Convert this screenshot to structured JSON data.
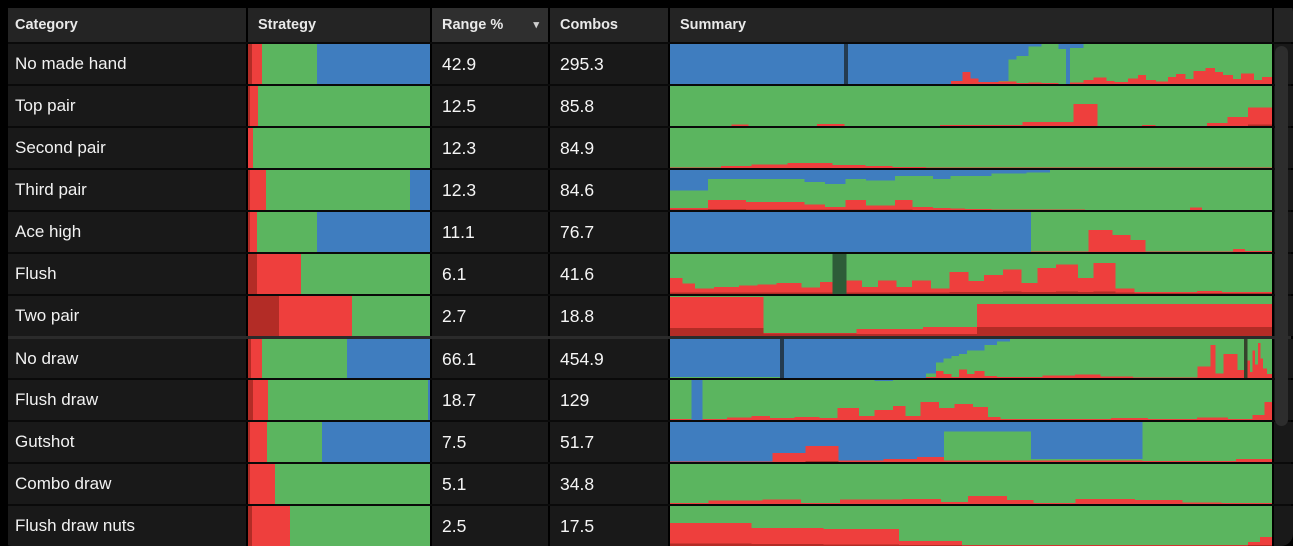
{
  "colors": {
    "red": "#ee3f3d",
    "dark_red": "#b32c26",
    "green": "#5bb55f",
    "blue": "#3f7dbf",
    "row_bg": "#191919",
    "header_bg": "#242424",
    "header_active_bg": "#2f2f2f",
    "separator": "#0a0a0a",
    "group_separator": "#2b2b2b",
    "frame": "#000000",
    "text": "#f2f2f2",
    "scrollbar_thumb": "#2d2d2d"
  },
  "header": {
    "category": "Category",
    "strategy": "Strategy",
    "range": "Range %",
    "combos": "Combos",
    "summary": "Summary",
    "sort_icon": "▾",
    "sorted_column": "range"
  },
  "rows": [
    {
      "category": "No made hand",
      "range": "42.9",
      "combos": "295.3",
      "strategy": {
        "dr": 0.02,
        "r": 0.055,
        "g": 0.305,
        "b": 0.62
      },
      "summary": [
        [
          0.262,
          0,
          0,
          0
        ],
        [
          0.006,
          "solid",
          "#243b50"
        ],
        [
          0.155,
          0,
          0,
          0
        ],
        [
          0.018,
          0,
          0.08,
          0
        ],
        [
          0.012,
          0,
          0.3,
          0
        ],
        [
          0.012,
          0,
          0.14,
          0
        ],
        [
          0.03,
          0,
          0.05,
          0
        ],
        [
          0.015,
          0,
          0.06,
          0.02
        ],
        [
          0.012,
          0,
          0.06,
          0.55
        ],
        [
          0.018,
          0,
          0.03,
          0.67
        ],
        [
          0.02,
          0,
          0.04,
          0.9
        ],
        [
          0.025,
          0,
          0.03,
          0.97
        ],
        [
          0.012,
          0,
          0,
          0.88
        ],
        [
          0.006,
          "solid",
          "#3f7dbf"
        ],
        [
          0.02,
          0,
          0.04,
          0.86
        ],
        [
          0.015,
          0,
          0.1,
          0.9
        ],
        [
          0.02,
          0,
          0.16,
          0.84
        ],
        [
          0.012,
          0,
          0.08,
          0.92
        ],
        [
          0.02,
          0,
          0.05,
          0.95
        ],
        [
          0.015,
          0,
          0.14,
          0.86
        ],
        [
          0.012,
          0,
          0.22,
          0.78
        ],
        [
          0.015,
          0,
          0.1,
          0.9
        ],
        [
          0.018,
          0,
          0.06,
          0.94
        ],
        [
          0.012,
          0,
          0.18,
          0.82
        ],
        [
          0.015,
          0,
          0.25,
          0.75
        ],
        [
          0.012,
          0,
          0.12,
          0.88
        ],
        [
          0.018,
          0,
          0.33,
          0.67
        ],
        [
          0.014,
          0,
          0.4,
          0.6
        ],
        [
          0.012,
          0,
          0.3,
          0.7
        ],
        [
          0.015,
          0,
          0.22,
          0.78
        ],
        [
          0.012,
          0,
          0.12,
          0.88
        ],
        [
          0.02,
          0,
          0.26,
          0.74
        ],
        [
          0.012,
          0,
          0.1,
          0.9
        ],
        [
          0.015,
          0,
          0.18,
          0.82
        ]
      ]
    },
    {
      "category": "Top pair",
      "range": "12.5",
      "combos": "85.8",
      "strategy": {
        "dr": 0.012,
        "r": 0.045,
        "g": 0.943,
        "b": 0
      },
      "summary": [
        [
          0.09,
          0,
          0.005,
          0.995
        ],
        [
          0.025,
          0,
          0.04,
          0.96
        ],
        [
          0.1,
          0,
          0.005,
          0.995
        ],
        [
          0.04,
          0,
          0.05,
          0.95
        ],
        [
          0.14,
          0,
          0,
          1
        ],
        [
          0.12,
          0,
          0.02,
          0.98
        ],
        [
          0.075,
          0,
          0.1,
          0.9
        ],
        [
          0.035,
          0,
          0.55,
          0.45
        ],
        [
          0.065,
          0,
          0.005,
          0.995
        ],
        [
          0.02,
          0,
          0.03,
          0.97
        ],
        [
          0.075,
          0,
          0,
          1
        ],
        [
          0.03,
          0,
          0.08,
          0.92
        ],
        [
          0.03,
          0,
          0.22,
          0.78
        ],
        [
          0.035,
          0.04,
          0.42,
          0.54
        ]
      ]
    },
    {
      "category": "Second pair",
      "range": "12.3",
      "combos": "84.9",
      "strategy": {
        "dr": 0,
        "r": 0.03,
        "g": 0.97,
        "b": 0
      },
      "summary": [
        [
          0.085,
          0,
          0.01,
          0.99
        ],
        [
          0.05,
          0,
          0.05,
          0.95
        ],
        [
          0.06,
          0,
          0.09,
          0.91
        ],
        [
          0.075,
          0,
          0.12,
          0.88
        ],
        [
          0.055,
          0,
          0.08,
          0.92
        ],
        [
          0.045,
          0,
          0.05,
          0.95
        ],
        [
          0.055,
          0,
          0.03,
          0.97
        ],
        [
          0.575,
          0,
          0.008,
          0.992
        ]
      ]
    },
    {
      "category": "Third pair",
      "range": "12.3",
      "combos": "84.6",
      "strategy": {
        "dr": 0.01,
        "r": 0.09,
        "g": 0.79,
        "b": 0.11
      },
      "summary": [
        [
          0.065,
          0.01,
          0.04,
          0.44
        ],
        [
          0.065,
          0.02,
          0.23,
          0.52
        ],
        [
          0.1,
          0.015,
          0.185,
          0.58
        ],
        [
          0.035,
          0.01,
          0.13,
          0.56
        ],
        [
          0.035,
          0.01,
          0.07,
          0.57
        ],
        [
          0.035,
          0.01,
          0.24,
          0.52
        ],
        [
          0.05,
          0.01,
          0.1,
          0.63
        ],
        [
          0.03,
          0.01,
          0.24,
          0.6
        ],
        [
          0.035,
          0.005,
          0.07,
          0.775
        ],
        [
          0.03,
          0.005,
          0.04,
          0.725
        ],
        [
          0.025,
          0.005,
          0.03,
          0.82
        ],
        [
          0.045,
          0,
          0.02,
          0.83
        ],
        [
          0.06,
          0,
          0.015,
          0.895
        ],
        [
          0.04,
          0,
          0.01,
          0.93
        ],
        [
          0.06,
          0,
          0.01,
          0.99
        ],
        [
          0.18,
          0,
          0.005,
          0.995
        ],
        [
          0.02,
          0,
          0.06,
          0.94
        ],
        [
          0.12,
          0,
          0.005,
          0.995
        ]
      ]
    },
    {
      "category": "Ace high",
      "range": "11.1",
      "combos": "76.7",
      "strategy": {
        "dr": 0.01,
        "r": 0.04,
        "g": 0.33,
        "b": 0.62
      },
      "summary": [
        [
          0.6,
          0,
          0,
          0
        ],
        [
          0.095,
          0,
          0.01,
          0.99
        ],
        [
          0.04,
          0,
          0.55,
          0.45
        ],
        [
          0.03,
          0,
          0.42,
          0.58
        ],
        [
          0.025,
          0,
          0.3,
          0.7
        ],
        [
          0.145,
          0,
          0.01,
          0.99
        ],
        [
          0.02,
          0,
          0.08,
          0.92
        ],
        [
          0.045,
          0,
          0.02,
          0.98
        ]
      ]
    },
    {
      "category": "Flush",
      "range": "6.1",
      "combos": "41.6",
      "strategy": {
        "dr": 0.05,
        "r": 0.24,
        "g": 0.71,
        "b": 0
      },
      "summary": [
        [
          0.02,
          0.04,
          0.36,
          0.6
        ],
        [
          0.02,
          0.04,
          0.22,
          0.74
        ],
        [
          0.03,
          0.04,
          0.1,
          0.86
        ],
        [
          0.04,
          0.04,
          0.13,
          0.83
        ],
        [
          0.03,
          0.04,
          0.17,
          0.79
        ],
        [
          0.03,
          0.04,
          0.2,
          0.76
        ],
        [
          0.04,
          0.04,
          0.24,
          0.72
        ],
        [
          0.03,
          0.04,
          0.12,
          0.84
        ],
        [
          0.02,
          0.04,
          0.26,
          0.7
        ],
        [
          0.022,
          "solid",
          "#2d5c38"
        ],
        [
          0.025,
          0.04,
          0.3,
          0.66
        ],
        [
          0.025,
          0.04,
          0.13,
          0.83
        ],
        [
          0.03,
          0.04,
          0.3,
          0.66
        ],
        [
          0.025,
          0.04,
          0.14,
          0.82
        ],
        [
          0.03,
          0.04,
          0.3,
          0.66
        ],
        [
          0.03,
          0.04,
          0.1,
          0.86
        ],
        [
          0.03,
          0.05,
          0.5,
          0.45
        ],
        [
          0.025,
          0.05,
          0.28,
          0.67
        ],
        [
          0.03,
          0.05,
          0.42,
          0.53
        ],
        [
          0.03,
          0.06,
          0.55,
          0.39
        ],
        [
          0.025,
          0.05,
          0.22,
          0.73
        ],
        [
          0.03,
          0.05,
          0.6,
          0.35
        ],
        [
          0.035,
          0.06,
          0.68,
          0.26
        ],
        [
          0.025,
          0.05,
          0.35,
          0.6
        ],
        [
          0.035,
          0.06,
          0.72,
          0.22
        ],
        [
          0.03,
          0.04,
          0.1,
          0.86
        ],
        [
          0.1,
          0.03,
          0.02,
          0.95
        ],
        [
          0.04,
          0.03,
          0.05,
          0.92
        ],
        [
          0.08,
          0.03,
          0.02,
          0.95
        ]
      ]
    },
    {
      "category": "Two pair",
      "range": "2.7",
      "combos": "18.8",
      "strategy": {
        "dr": 0.17,
        "r": 0.4,
        "g": 0.43,
        "b": 0
      },
      "summary": [
        [
          0.155,
          0.2,
          0.78,
          0.02
        ],
        [
          0.155,
          0.06,
          0.01,
          0.93
        ],
        [
          0.11,
          0.05,
          0.13,
          0.82
        ],
        [
          0.09,
          0.05,
          0.18,
          0.77
        ],
        [
          0.49,
          0.22,
          0.58,
          0.2
        ]
      ]
    },
    {
      "category": "No draw",
      "range": "66.1",
      "combos": "454.9",
      "group_start": true,
      "strategy": {
        "dr": 0.015,
        "r": 0.06,
        "g": 0.47,
        "b": 0.455
      },
      "summary": [
        [
          0.17,
          0,
          0,
          0.02
        ],
        [
          0.006,
          "solid",
          "#243b50"
        ],
        [
          0.22,
          0,
          0,
          0
        ],
        [
          0.015,
          0,
          0.02,
          0.1
        ],
        [
          0.012,
          0,
          0.18,
          0.22
        ],
        [
          0.012,
          0,
          0.1,
          0.4
        ],
        [
          0.012,
          0,
          0.02,
          0.55
        ],
        [
          0.012,
          0,
          0.22,
          0.4
        ],
        [
          0.012,
          0,
          0.1,
          0.6
        ],
        [
          0.015,
          0,
          0.18,
          0.52
        ],
        [
          0.02,
          0,
          0.05,
          0.8
        ],
        [
          0.02,
          0,
          0.03,
          0.9
        ],
        [
          0.05,
          0,
          0.02,
          0.98
        ],
        [
          0.05,
          0,
          0.06,
          0.94
        ],
        [
          0.04,
          0,
          0.09,
          0.91
        ],
        [
          0.05,
          0,
          0.04,
          0.96
        ],
        [
          0.1,
          0,
          0.01,
          0.99
        ],
        [
          0.02,
          0,
          0.3,
          0.7
        ],
        [
          0.008,
          0,
          0.85,
          0.15
        ],
        [
          0.012,
          0,
          0.12,
          0.88
        ],
        [
          0.022,
          0,
          0.62,
          0.38
        ],
        [
          0.01,
          0,
          0.2,
          0.8
        ],
        [
          0.005,
          "solid",
          "#35432c"
        ],
        [
          0.004,
          0,
          0.45,
          0.55
        ],
        [
          0.004,
          0,
          0.15,
          0.85
        ],
        [
          0.004,
          0,
          0.7,
          0.3
        ],
        [
          0.004,
          0,
          0.35,
          0.65
        ],
        [
          0.004,
          0,
          0.9,
          0.1
        ],
        [
          0.004,
          0,
          0.5,
          0.5
        ],
        [
          0.006,
          0,
          0.25,
          0.75
        ],
        [
          0.008,
          0,
          0.1,
          0.9
        ]
      ]
    },
    {
      "category": "Flush draw",
      "range": "18.7",
      "combos": "129",
      "strategy": {
        "dr": 0.025,
        "r": 0.085,
        "g": 0.88,
        "b": 0.01
      },
      "summary": [
        [
          0.035,
          0,
          0.02,
          0.98
        ],
        [
          0.018,
          "solid",
          "#3f7dbf"
        ],
        [
          0.04,
          0,
          0.03,
          0.97
        ],
        [
          0.04,
          0,
          0.06,
          0.94
        ],
        [
          0.03,
          0,
          0.1,
          0.9
        ],
        [
          0.04,
          0,
          0.05,
          0.95
        ],
        [
          0.04,
          0,
          0.08,
          0.92
        ],
        [
          0.03,
          0,
          0.05,
          0.95
        ],
        [
          0.035,
          0,
          0.3,
          0.7
        ],
        [
          0.025,
          0,
          0.1,
          0.9
        ],
        [
          0.03,
          0,
          0.25,
          0.73
        ],
        [
          0.02,
          0,
          0.35,
          0.65
        ],
        [
          0.025,
          0,
          0.1,
          0.9
        ],
        [
          0.03,
          0,
          0.45,
          0.55
        ],
        [
          0.025,
          0,
          0.3,
          0.7
        ],
        [
          0.03,
          0,
          0.4,
          0.6
        ],
        [
          0.025,
          0,
          0.32,
          0.68
        ],
        [
          0.02,
          0,
          0.08,
          0.92
        ],
        [
          0.18,
          0,
          0.02,
          0.98
        ],
        [
          0.06,
          0,
          0.05,
          0.95
        ],
        [
          0.08,
          0,
          0.02,
          0.98
        ],
        [
          0.05,
          0,
          0.06,
          0.94
        ],
        [
          0.04,
          0,
          0.03,
          0.97
        ],
        [
          0.02,
          0,
          0.12,
          0.88
        ],
        [
          0.012,
          0,
          0.45,
          0.55
        ]
      ]
    },
    {
      "category": "Gutshot",
      "range": "7.5",
      "combos": "51.7",
      "strategy": {
        "dr": 0.01,
        "r": 0.095,
        "g": 0.3,
        "b": 0.595
      },
      "summary": [
        [
          0.17,
          0,
          0.01,
          0
        ],
        [
          0.055,
          0,
          0.22,
          0
        ],
        [
          0.055,
          0.02,
          0.38,
          0
        ],
        [
          0.075,
          0,
          0.04,
          0
        ],
        [
          0.055,
          0,
          0.08,
          0
        ],
        [
          0.045,
          0,
          0.12,
          0
        ],
        [
          0.145,
          0,
          0.04,
          0.72
        ],
        [
          0.185,
          0,
          0.04,
          0.04
        ],
        [
          0.155,
          0,
          0.03,
          0.97
        ],
        [
          0.06,
          0,
          0.07,
          0.93
        ]
      ]
    },
    {
      "category": "Combo draw",
      "range": "5.1",
      "combos": "34.8",
      "strategy": {
        "dr": 0.01,
        "r": 0.14,
        "g": 0.85,
        "b": 0
      },
      "summary": [
        [
          0.065,
          0,
          0.02,
          0.98
        ],
        [
          0.09,
          0,
          0.09,
          0.91
        ],
        [
          0.065,
          0,
          0.11,
          0.89
        ],
        [
          0.065,
          0,
          0.03,
          0.97
        ],
        [
          0.105,
          0,
          0.11,
          0.89
        ],
        [
          0.065,
          0,
          0.13,
          0.87
        ],
        [
          0.045,
          0,
          0.05,
          0.95
        ],
        [
          0.065,
          0,
          0.2,
          0.8
        ],
        [
          0.045,
          0,
          0.1,
          0.9
        ],
        [
          0.07,
          0,
          0.02,
          0.98
        ],
        [
          0.1,
          0,
          0.12,
          0.88
        ],
        [
          0.08,
          0,
          0.1,
          0.9
        ],
        [
          0.065,
          0,
          0.04,
          0.96
        ],
        [
          0.085,
          0,
          0.02,
          0.98
        ]
      ]
    },
    {
      "category": "Flush draw nuts",
      "range": "2.5",
      "combos": "17.5",
      "strategy": {
        "dr": 0.02,
        "r": 0.21,
        "g": 0.77,
        "b": 0
      },
      "summary": [
        [
          0.135,
          0.06,
          0.52,
          0.42
        ],
        [
          0.12,
          0.05,
          0.4,
          0.55
        ],
        [
          0.125,
          0.04,
          0.38,
          0.58
        ],
        [
          0.105,
          0.02,
          0.1,
          0.88
        ],
        [
          0.475,
          0.015,
          0.015,
          0.97
        ],
        [
          0.02,
          0.02,
          0.08,
          0.9
        ],
        [
          0.02,
          0.03,
          0.2,
          0.77
        ]
      ]
    }
  ]
}
